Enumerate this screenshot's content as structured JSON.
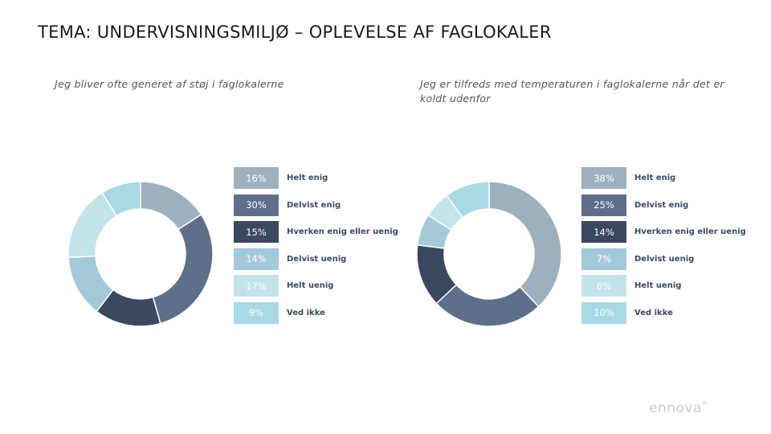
{
  "title": "TEMA: UNDERVISNINGSMILJØ – OPLEVELSE AF FAGLOKALER",
  "logo": "ennova",
  "colors": [
    "#9bb1be",
    "#5e6f8c",
    "#3a4860",
    "#a3cad9",
    "#c3e3ea",
    "#a8d9e4"
  ],
  "chart_data": [
    {
      "type": "pie",
      "title": "Jeg bliver ofte generet af støj i faglokalerne",
      "categories": [
        "Helt enig",
        "Delvist enig",
        "Hverken enig eller uenig",
        "Delvist uenig",
        "Helt uenig",
        "Ved ikke"
      ],
      "values": [
        16,
        30,
        15,
        14,
        17,
        9
      ],
      "labels": [
        "16%",
        "30%",
        "15%",
        "14%",
        "17%",
        "9%"
      ],
      "legend_position": "right"
    },
    {
      "type": "pie",
      "title": "Jeg er tilfreds med temperaturen i faglokalerne når det er koldt udenfor",
      "categories": [
        "Helt enig",
        "Delvist enig",
        "Hverken enig eller uenig",
        "Delvist uenig",
        "Helt uenig",
        "Ved ikke"
      ],
      "values": [
        38,
        25,
        14,
        7,
        6,
        10
      ],
      "labels": [
        "38%",
        "25%",
        "14%",
        "7%",
        "6%",
        "10%"
      ],
      "legend_position": "right"
    }
  ]
}
